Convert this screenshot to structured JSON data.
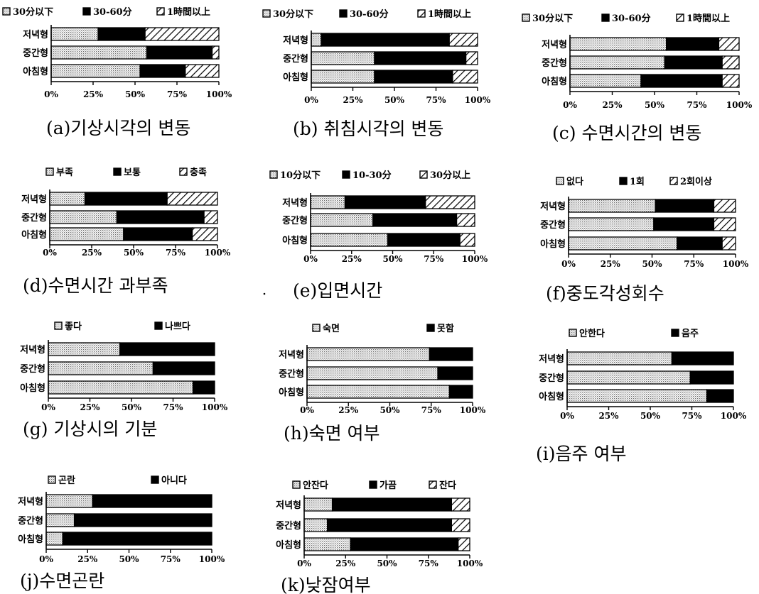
{
  "chart_data": [
    {
      "type": "bar",
      "stacked": "percent",
      "orientation": "horizontal",
      "caption": "(a)기상시각의 변동",
      "legend": [
        "30分以下",
        "30-60分",
        "1時間以上"
      ],
      "categories": [
        "저녁형",
        "중간형",
        "아침형"
      ],
      "series": [
        {
          "name": "30分以下",
          "values": [
            28,
            57,
            53
          ]
        },
        {
          "name": "30-60分",
          "values": [
            28,
            39,
            27
          ]
        },
        {
          "name": "1時間以上",
          "values": [
            44,
            4,
            20
          ]
        }
      ],
      "xticks": [
        "0%",
        "25%",
        "50%",
        "75%",
        "100%"
      ],
      "xlim": [
        0,
        100
      ]
    },
    {
      "type": "bar",
      "stacked": "percent",
      "orientation": "horizontal",
      "caption": "(b) 취침시각의 변동",
      "legend": [
        "30分以下",
        "30-60分",
        "1時間以上"
      ],
      "categories": [
        "저녁형",
        "중간형",
        "아침형"
      ],
      "series": [
        {
          "name": "30分以下",
          "values": [
            6,
            38,
            38
          ]
        },
        {
          "name": "30-60分",
          "values": [
            77,
            55,
            47
          ]
        },
        {
          "name": "1時間以上",
          "values": [
            17,
            7,
            15
          ]
        }
      ],
      "xticks": [
        "0%",
        "25%",
        "50%",
        "75%",
        "100%"
      ],
      "xlim": [
        0,
        100
      ]
    },
    {
      "type": "bar",
      "stacked": "percent",
      "orientation": "horizontal",
      "caption": "(c) 수면시간의 변동",
      "legend": [
        "30分以下",
        "30-60分",
        "1時間以上"
      ],
      "categories": [
        "저녁형",
        "중간형",
        "아침형"
      ],
      "series": [
        {
          "name": "30分以下",
          "values": [
            57,
            56,
            42
          ]
        },
        {
          "name": "30-60分",
          "values": [
            31,
            34,
            48
          ]
        },
        {
          "name": "1時間以上",
          "values": [
            12,
            10,
            10
          ]
        }
      ],
      "xticks": [
        "0%",
        "25%",
        "50%",
        "75%",
        "100%"
      ],
      "xlim": [
        0,
        100
      ]
    },
    {
      "type": "bar",
      "stacked": "percent",
      "orientation": "horizontal",
      "caption": "(d)수면시간 과부족",
      "legend": [
        "부족",
        "보통",
        "충족"
      ],
      "categories": [
        "저녁형",
        "중간형",
        "아침형"
      ],
      "series": [
        {
          "name": "부족",
          "values": [
            21,
            40,
            44
          ]
        },
        {
          "name": "보통",
          "values": [
            49,
            52,
            41
          ]
        },
        {
          "name": "충족",
          "values": [
            30,
            8,
            15
          ]
        }
      ],
      "xticks": [
        "0%",
        "25%",
        "50%",
        "75%",
        "100%"
      ],
      "xlim": [
        0,
        100
      ]
    },
    {
      "type": "bar",
      "stacked": "percent",
      "orientation": "horizontal",
      "caption": "(e)입면시간",
      "legend": [
        "10分以下",
        "10-30分",
        "30分以上"
      ],
      "categories": [
        "저녁형",
        "중간형",
        "아침형"
      ],
      "series": [
        {
          "name": "10分以下",
          "values": [
            21,
            38,
            47
          ]
        },
        {
          "name": "10-30分",
          "values": [
            49,
            51,
            44
          ]
        },
        {
          "name": "30分以上",
          "values": [
            30,
            11,
            9
          ]
        }
      ],
      "xticks": [
        "0%",
        "25%",
        "50%",
        "75%",
        "100%"
      ],
      "xlim": [
        0,
        100
      ]
    },
    {
      "type": "bar",
      "stacked": "percent",
      "orientation": "horizontal",
      "caption": "(f)중도각성회수",
      "legend": [
        "없다",
        "1회",
        "2회이상"
      ],
      "categories": [
        "저녁형",
        "중간형",
        "아침형"
      ],
      "series": [
        {
          "name": "없다",
          "values": [
            52,
            51,
            65
          ]
        },
        {
          "name": "1회",
          "values": [
            35,
            36,
            27
          ]
        },
        {
          "name": "2회이상",
          "values": [
            13,
            13,
            8
          ]
        }
      ],
      "xticks": [
        "0%",
        "25%",
        "50%",
        "75%",
        "100%"
      ],
      "xlim": [
        0,
        100
      ]
    },
    {
      "type": "bar",
      "stacked": "percent",
      "orientation": "horizontal",
      "caption": "(g) 기상시의 기분",
      "legend": [
        "좋다",
        "나쁘다"
      ],
      "categories": [
        "저녁형",
        "중간형",
        "아침형"
      ],
      "series": [
        {
          "name": "좋다",
          "values": [
            43,
            63,
            87
          ]
        },
        {
          "name": "나쁘다",
          "values": [
            57,
            37,
            13
          ]
        }
      ],
      "xticks": [
        "0%",
        "25%",
        "50%",
        "75%",
        "100%"
      ],
      "xlim": [
        0,
        100
      ]
    },
    {
      "type": "bar",
      "stacked": "percent",
      "orientation": "horizontal",
      "caption": "(h)숙면 여부",
      "legend": [
        "숙면",
        "못함"
      ],
      "categories": [
        "저녁형",
        "중간형",
        "아침형"
      ],
      "series": [
        {
          "name": "숙면",
          "values": [
            74,
            79,
            86
          ]
        },
        {
          "name": "못함",
          "values": [
            26,
            21,
            14
          ]
        }
      ],
      "xticks": [
        "0%",
        "25%",
        "50%",
        "75%",
        "100%"
      ],
      "xlim": [
        0,
        100
      ]
    },
    {
      "type": "bar",
      "stacked": "percent",
      "orientation": "horizontal",
      "caption": "(i)음주 여부",
      "legend": [
        "안한다",
        "음주"
      ],
      "categories": [
        "저녁형",
        "중간형",
        "아침형"
      ],
      "series": [
        {
          "name": "안한다",
          "values": [
            63,
            74,
            84
          ]
        },
        {
          "name": "음주",
          "values": [
            37,
            26,
            16
          ]
        }
      ],
      "xticks": [
        "0%",
        "25%",
        "50%",
        "75%",
        "100%"
      ],
      "xlim": [
        0,
        100
      ]
    },
    {
      "type": "bar",
      "stacked": "percent",
      "orientation": "horizontal",
      "caption": "(j)수면곤란",
      "legend": [
        "곤란",
        "아니다"
      ],
      "categories": [
        "저녁형",
        "중간형",
        "아침형"
      ],
      "series": [
        {
          "name": "곤란",
          "values": [
            28,
            17,
            10
          ]
        },
        {
          "name": "아니다",
          "values": [
            72,
            83,
            90
          ]
        }
      ],
      "xticks": [
        "0%",
        "25%",
        "50%",
        "75%",
        "100%"
      ],
      "xlim": [
        0,
        100
      ]
    },
    {
      "type": "bar",
      "stacked": "percent",
      "orientation": "horizontal",
      "caption": "(k)낮잠여부",
      "legend": [
        "안잔다",
        "가끔",
        "잔다"
      ],
      "categories": [
        "저녁형",
        "중간형",
        "아침형"
      ],
      "series": [
        {
          "name": "안잔다",
          "values": [
            17,
            14,
            28
          ]
        },
        {
          "name": "가끔",
          "values": [
            72,
            75,
            65
          ]
        },
        {
          "name": "잔다",
          "values": [
            11,
            11,
            7
          ]
        }
      ],
      "xticks": [
        "0%",
        "25%",
        "50%",
        "75%",
        "100%"
      ],
      "xlim": [
        0,
        100
      ]
    }
  ]
}
